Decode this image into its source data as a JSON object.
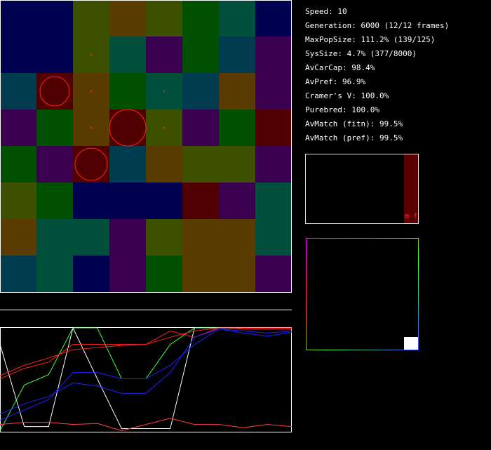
{
  "stats": [
    "Speed: 10",
    "Generation: 6000 (12/12 frames)",
    "MaxPopSize: 111.2% (139/125)",
    "SysSize: 4.7% (377/8000)",
    "AvCarCap: 98.4%",
    "AvPref: 96.9%",
    "Cramer's V: 100.0%",
    "Purebred: 100.0%",
    "AvMatch (fitn): 99.5%",
    "AvMatch (pref): 99.5%"
  ],
  "pref_box": {
    "label": "m f"
  },
  "plot": {
    "type": "line",
    "series": [
      {
        "color": "#ffffff",
        "values": [
          0.84,
          0.05,
          0.05,
          1,
          0.51,
          0.03,
          0.03,
          0.03,
          1,
          1,
          1,
          1,
          1
        ]
      },
      {
        "color": "#40ff40",
        "values": [
          0.01,
          0.45,
          0.55,
          1,
          1,
          0.51,
          0.51,
          0.84,
          1,
          1,
          0.99,
          0.99,
          0.99
        ]
      },
      {
        "color": "#ff2020",
        "values": [
          0.51,
          0.61,
          0.67,
          0.84,
          0.84,
          0.84,
          0.84,
          0.97,
          0.91,
          1,
          0.99,
          0.99,
          0.99
        ]
      },
      {
        "color": "#ff2020",
        "values": [
          0.54,
          0.64,
          0.71,
          0.79,
          0.81,
          0.83,
          0.84,
          0.91,
          0.97,
          1,
          1,
          1,
          1
        ]
      },
      {
        "color": "#2020ff",
        "values": [
          0.17,
          0.27,
          0.34,
          0.47,
          0.44,
          0.37,
          0.37,
          0.57,
          0.91,
          0.99,
          0.97,
          0.95,
          0.97
        ]
      },
      {
        "color": "#2020ff",
        "values": [
          0.11,
          0.21,
          0.31,
          0.57,
          0.57,
          0.51,
          0.51,
          0.64,
          0.84,
          0.99,
          0.95,
          0.92,
          0.96
        ]
      },
      {
        "color": "#ff4040",
        "values": [
          0.07,
          0.09,
          0.09,
          0.07,
          0.08,
          0.01,
          0.07,
          0.13,
          0.07,
          0.07,
          0.04,
          0.07,
          0.05
        ]
      }
    ]
  }
}
